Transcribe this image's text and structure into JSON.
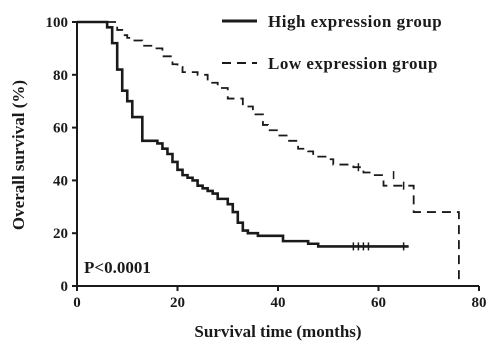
{
  "chart_data": {
    "type": "line",
    "subtype": "kaplan-meier step",
    "xlabel": "Survival time (months)",
    "ylabel": "Overall survival (%)",
    "xlim": [
      0,
      80
    ],
    "ylim": [
      0,
      100
    ],
    "xticks": [
      0,
      20,
      40,
      60,
      80
    ],
    "yticks": [
      0,
      20,
      40,
      60,
      80,
      100
    ],
    "grid": false,
    "legend_position": "top-right",
    "annotation": "P<0.0001",
    "series": [
      {
        "name": "High expression group",
        "style": "solid",
        "x": [
          0,
          5,
          6,
          7,
          8,
          9,
          10,
          11,
          13,
          16,
          17,
          18,
          19,
          20,
          21,
          22,
          23,
          24,
          25,
          26,
          27,
          28,
          30,
          31,
          32,
          33,
          34,
          36,
          41,
          46,
          48,
          66
        ],
        "y": [
          100,
          100,
          98,
          92,
          82,
          74,
          70,
          64,
          55,
          54,
          52,
          50,
          47,
          44,
          42,
          41,
          40,
          38,
          37,
          36,
          35,
          33,
          31,
          28,
          24,
          21,
          20,
          19,
          17,
          16,
          15,
          15
        ],
        "censor_x": [
          55,
          56,
          57,
          58,
          65
        ],
        "censor_y": [
          15,
          15,
          15,
          15,
          15
        ]
      },
      {
        "name": "Low expression group",
        "style": "dashed",
        "x": [
          0,
          7,
          8,
          9,
          10,
          11,
          13,
          15,
          17,
          19,
          20,
          21,
          24,
          26,
          28,
          30,
          33,
          35,
          37,
          38,
          40,
          42,
          44,
          46,
          47,
          50,
          51,
          53,
          55,
          57,
          59,
          61,
          66,
          67,
          76,
          76
        ],
        "y": [
          100,
          100,
          97,
          95,
          94,
          93,
          91,
          90,
          87,
          84,
          83,
          81,
          80,
          77,
          75,
          71,
          68,
          65,
          61,
          59,
          57,
          55,
          52,
          51,
          49,
          48,
          46,
          46,
          45,
          43,
          42,
          38,
          38,
          28,
          28,
          0
        ],
        "censor_x": [
          56,
          63,
          65
        ],
        "censor_y": [
          45,
          42,
          38
        ]
      }
    ]
  }
}
